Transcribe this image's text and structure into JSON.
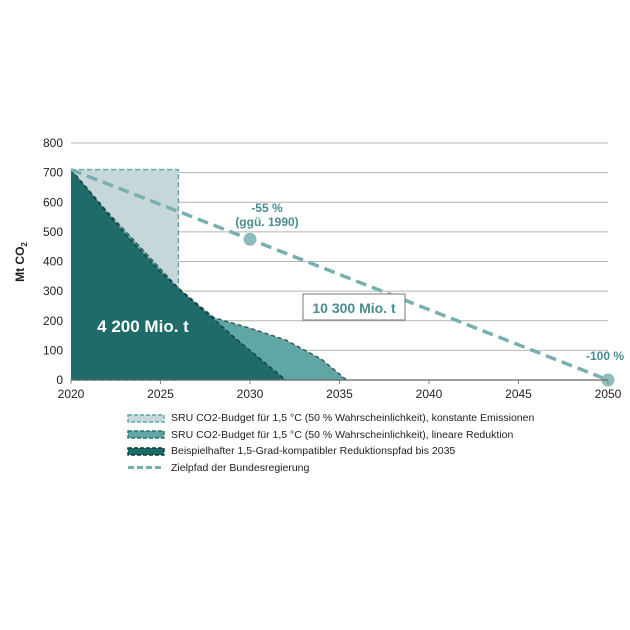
{
  "chart_data": {
    "type": "area",
    "title": "",
    "xlabel": "",
    "ylabel": "Mt CO₂",
    "ylabel_main": "Mt CO",
    "ylabel_sub": "2",
    "xlim": [
      2020,
      2050
    ],
    "ylim": [
      0,
      800
    ],
    "xticks": [
      "2020",
      "2025",
      "2030",
      "2035",
      "2040",
      "2045",
      "2050"
    ],
    "yticks": [
      "0",
      "100",
      "200",
      "300",
      "400",
      "500",
      "600",
      "700",
      "800"
    ],
    "grid": "horizontal",
    "legend_position": "bottom",
    "colors": {
      "constant": "#c5d7d8",
      "linear": "#5fa6a5",
      "example": "#1f6b6a",
      "target_path": "#78b0b1",
      "label_text": "#4a8c8f"
    },
    "series": [
      {
        "name": "SRU CO2-Budget für 1,5 °C (50 % Wahrscheinlichkeit), konstante Emissionen",
        "kind": "area",
        "x": [
          2020,
          2026,
          2026,
          2020
        ],
        "y": [
          710,
          710,
          0,
          0
        ]
      },
      {
        "name": "SRU CO2-Budget für 1,5 °C (50 % Wahrscheinlichkeit), lineare Reduktion",
        "kind": "area",
        "x": [
          2020,
          2022,
          2024,
          2026,
          2028,
          2030,
          2032,
          2034,
          2035.4
        ],
        "y": [
          710,
          570,
          440,
          310,
          210,
          175,
          135,
          70,
          0
        ]
      },
      {
        "name": "Beispielhafter 1,5-Grad-kompatibler Reduktionspfad bis 2035",
        "kind": "area",
        "x": [
          2020,
          2021,
          2022,
          2023,
          2024,
          2025,
          2026,
          2027,
          2028,
          2029,
          2030,
          2031,
          2032
        ],
        "y": [
          710,
          640,
          565,
          495,
          430,
          365,
          310,
          255,
          205,
          150,
          100,
          50,
          0
        ]
      },
      {
        "name": "Zielpfad der Bundesregierung",
        "kind": "line",
        "x": [
          2020,
          2030,
          2050
        ],
        "y": [
          710,
          475,
          0
        ]
      }
    ],
    "markers": [
      {
        "x": 2030,
        "y": 475
      },
      {
        "x": 2050,
        "y": 0
      }
    ],
    "annotations": {
      "budget_constant": "4 200 Mio. t",
      "budget_target": "10 300 Mio. t",
      "pct_2030": "-55 %",
      "pct_2030_note": "(ggü. 1990)",
      "pct_2050": "-100 %"
    }
  }
}
